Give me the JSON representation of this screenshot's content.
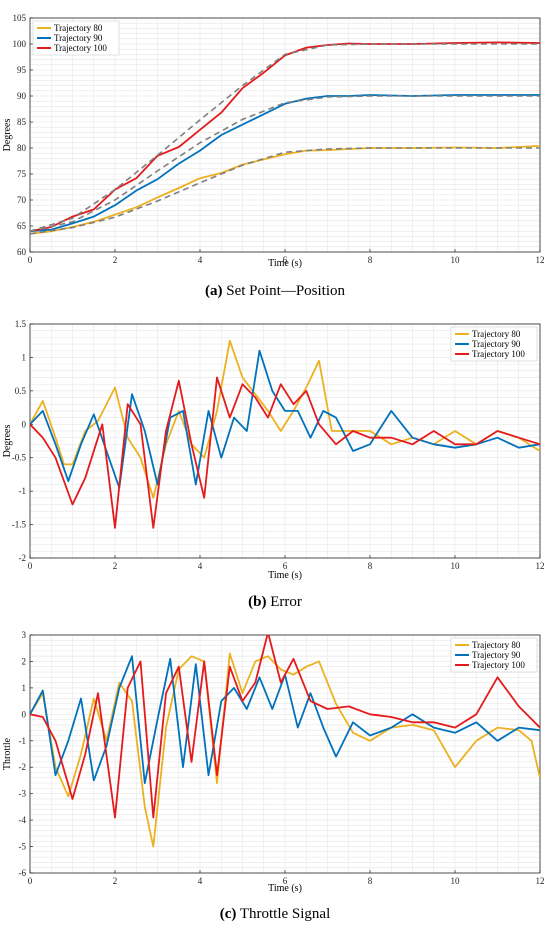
{
  "colors": {
    "traj80": "#EDB120",
    "traj90": "#0072BD",
    "traj100": "#E41A1C",
    "setpoint": "#7F7F7F",
    "grid": "#E6E6E6",
    "axis": "#222222"
  },
  "chart_data": [
    {
      "type": "line",
      "caption_letter": "(a)",
      "caption_text": " Set Point—Position",
      "xlabel": "Time (s)",
      "ylabel": "Degrees",
      "xlim": [
        0,
        12
      ],
      "ylim": [
        60,
        105
      ],
      "xticks": [
        0,
        2,
        4,
        6,
        8,
        10,
        12
      ],
      "yticks": [
        60,
        65,
        70,
        75,
        80,
        85,
        90,
        95,
        100,
        105
      ],
      "legend_position": "top-left",
      "grid": true,
      "series": [
        {
          "name": "Trajectory 80",
          "color_key": "traj80",
          "style": "solid",
          "x": [
            0,
            0.5,
            1,
            1.5,
            2,
            2.5,
            3,
            3.5,
            4,
            4.5,
            5,
            5.5,
            6,
            6.5,
            7,
            7.5,
            8,
            9,
            10,
            11,
            12
          ],
          "y": [
            63.5,
            64,
            64.8,
            65.8,
            67.2,
            68.6,
            70.5,
            72.3,
            74.2,
            75.2,
            76.8,
            77.8,
            78.8,
            79.5,
            79.6,
            79.8,
            80,
            80,
            80.1,
            80,
            80.4
          ]
        },
        {
          "name": "Trajectory 90",
          "color_key": "traj90",
          "style": "solid",
          "x": [
            0,
            0.5,
            1,
            1.5,
            2,
            2.5,
            3,
            3.5,
            4,
            4.5,
            5,
            5.5,
            6,
            6.5,
            7,
            7.5,
            8,
            9,
            10,
            11,
            12
          ],
          "y": [
            64,
            64.3,
            65.5,
            66.8,
            69,
            71.8,
            74,
            77,
            79.5,
            82.5,
            84.5,
            86.5,
            88.5,
            89.5,
            90,
            90,
            90.2,
            90,
            90.2,
            90.2,
            90.2
          ]
        },
        {
          "name": "Trajectory 100",
          "color_key": "traj100",
          "style": "solid",
          "x": [
            0,
            0.5,
            1,
            1.5,
            2,
            2.5,
            3,
            3.5,
            4,
            4.5,
            5,
            5.5,
            6,
            6.5,
            7,
            7.5,
            8,
            9,
            10,
            11,
            12
          ],
          "y": [
            64,
            64.8,
            66.8,
            68.2,
            72,
            74.2,
            78.5,
            80.2,
            83.5,
            86.8,
            91.5,
            94.5,
            97.8,
            99.3,
            99.8,
            100.1,
            100,
            100,
            100.2,
            100.3,
            100.2
          ]
        },
        {
          "name": "",
          "color_key": "setpoint",
          "style": "dashed",
          "x": [
            0,
            1,
            2,
            3,
            4,
            5,
            6,
            7,
            8,
            9,
            10,
            11,
            12
          ],
          "y": [
            63.5,
            64.7,
            66.7,
            69.8,
            73.3,
            76.7,
            79.2,
            79.8,
            80,
            80,
            80,
            80,
            80
          ]
        },
        {
          "name": "",
          "color_key": "setpoint",
          "style": "dashed",
          "x": [
            0,
            1,
            2,
            3,
            4,
            5,
            6,
            7,
            8,
            9,
            10,
            11,
            12
          ],
          "y": [
            64,
            65.8,
            70,
            75.6,
            81,
            85.5,
            88.7,
            89.8,
            90,
            90,
            90,
            90,
            90
          ]
        },
        {
          "name": "",
          "color_key": "setpoint",
          "style": "dashed",
          "x": [
            0,
            1,
            2,
            3,
            4,
            5,
            6,
            7,
            8,
            9,
            10,
            11,
            12
          ],
          "y": [
            64,
            66.5,
            72,
            78.6,
            85.4,
            92,
            98,
            99.8,
            100,
            100,
            100,
            100,
            100
          ]
        }
      ]
    },
    {
      "type": "line",
      "caption_letter": "(b)",
      "caption_text": " Error",
      "xlabel": "Time (s)",
      "ylabel": "Degrees",
      "xlim": [
        0,
        12
      ],
      "ylim": [
        -2,
        1.5
      ],
      "xticks": [
        0,
        2,
        4,
        6,
        8,
        10,
        12
      ],
      "yticks": [
        -2,
        -1.5,
        -1,
        -0.5,
        0,
        0.5,
        1,
        1.5
      ],
      "legend_position": "top-right",
      "grid": true,
      "series": [
        {
          "name": "Trajectory 80",
          "color_key": "traj80",
          "style": "solid",
          "x": [
            0,
            0.3,
            0.6,
            0.8,
            1.0,
            1.3,
            1.6,
            2.0,
            2.3,
            2.6,
            2.9,
            3.2,
            3.5,
            3.8,
            4.1,
            4.4,
            4.7,
            5.0,
            5.3,
            5.6,
            5.9,
            6.2,
            6.5,
            6.8,
            7.1,
            7.4,
            7.7,
            8.0,
            8.5,
            9.0,
            9.5,
            10.0,
            10.5,
            11.0,
            11.5,
            12.0
          ],
          "y": [
            0,
            0.35,
            -0.2,
            -0.6,
            -0.6,
            -0.1,
            0.05,
            0.55,
            -0.2,
            -0.5,
            -1.1,
            -0.3,
            0.2,
            -0.3,
            -0.5,
            0.2,
            1.25,
            0.7,
            0.45,
            0.2,
            -0.1,
            0.2,
            0.55,
            0.95,
            -0.1,
            -0.1,
            -0.1,
            -0.1,
            -0.3,
            -0.2,
            -0.3,
            -0.1,
            -0.3,
            -0.1,
            -0.2,
            -0.4
          ]
        },
        {
          "name": "Trajectory 90",
          "color_key": "traj90",
          "style": "solid",
          "x": [
            0,
            0.3,
            0.6,
            0.9,
            1.2,
            1.5,
            1.8,
            2.1,
            2.4,
            2.7,
            3.0,
            3.3,
            3.6,
            3.9,
            4.2,
            4.5,
            4.8,
            5.1,
            5.4,
            5.7,
            6.0,
            6.3,
            6.6,
            6.9,
            7.2,
            7.6,
            8.0,
            8.5,
            9.0,
            9.5,
            10.0,
            10.5,
            11.0,
            11.5,
            12.0
          ],
          "y": [
            0,
            0.2,
            -0.3,
            -0.85,
            -0.3,
            0.15,
            -0.4,
            -0.95,
            0.45,
            -0.1,
            -0.9,
            0.1,
            0.2,
            -0.9,
            0.2,
            -0.5,
            0.1,
            -0.1,
            1.1,
            0.5,
            0.2,
            0.2,
            -0.2,
            0.2,
            0.1,
            -0.4,
            -0.3,
            0.2,
            -0.2,
            -0.3,
            -0.35,
            -0.3,
            -0.2,
            -0.35,
            -0.3
          ]
        },
        {
          "name": "Trajectory 100",
          "color_key": "traj100",
          "style": "solid",
          "x": [
            0,
            0.3,
            0.6,
            1.0,
            1.3,
            1.7,
            2.0,
            2.3,
            2.6,
            2.9,
            3.2,
            3.5,
            3.8,
            4.1,
            4.4,
            4.7,
            5.0,
            5.3,
            5.6,
            5.9,
            6.2,
            6.5,
            6.8,
            7.2,
            7.6,
            8.0,
            8.5,
            9.0,
            9.5,
            10.0,
            10.5,
            11.0,
            11.5,
            12.0
          ],
          "y": [
            0,
            -0.2,
            -0.5,
            -1.2,
            -0.8,
            0.0,
            -1.55,
            0.3,
            0.0,
            -1.55,
            -0.1,
            0.65,
            -0.3,
            -1.1,
            0.7,
            0.1,
            0.6,
            0.4,
            0.1,
            0.6,
            0.3,
            0.5,
            0.0,
            -0.3,
            -0.1,
            -0.2,
            -0.2,
            -0.3,
            -0.1,
            -0.3,
            -0.3,
            -0.1,
            -0.2,
            -0.3
          ]
        }
      ]
    },
    {
      "type": "line",
      "caption_letter": "(c)",
      "caption_text": " Throttle Signal",
      "xlabel": "Time (s)",
      "ylabel": "Throttle",
      "xlim": [
        0,
        12
      ],
      "ylim": [
        -6,
        3
      ],
      "xticks": [
        0,
        2,
        4,
        6,
        8,
        10,
        12
      ],
      "yticks": [
        -6,
        -5,
        -4,
        -3,
        -2,
        -1,
        0,
        1,
        2,
        3
      ],
      "legend_position": "top-right",
      "grid": true,
      "series": [
        {
          "name": "Trajectory 80",
          "color_key": "traj80",
          "style": "solid",
          "x": [
            0,
            0.3,
            0.6,
            0.9,
            1.2,
            1.5,
            1.8,
            2.1,
            2.4,
            2.7,
            2.9,
            3.2,
            3.5,
            3.8,
            4.1,
            4.4,
            4.7,
            5.0,
            5.3,
            5.6,
            5.9,
            6.2,
            6.5,
            6.8,
            7.2,
            7.6,
            8.0,
            8.5,
            9.0,
            9.5,
            10.0,
            10.5,
            11.0,
            11.5,
            11.8,
            12.0
          ],
          "y": [
            0,
            0.8,
            -2.0,
            -3.1,
            -1.5,
            0.6,
            -1.0,
            1.2,
            0.5,
            -3.5,
            -5.0,
            -0.5,
            1.7,
            2.2,
            2.0,
            -2.6,
            2.3,
            0.8,
            2.0,
            2.2,
            1.7,
            1.5,
            1.8,
            2.0,
            0.4,
            -0.7,
            -1.0,
            -0.5,
            -0.4,
            -0.6,
            -2.0,
            -1.0,
            -0.5,
            -0.6,
            -1.0,
            -2.4
          ]
        },
        {
          "name": "Trajectory 90",
          "color_key": "traj90",
          "style": "solid",
          "x": [
            0,
            0.3,
            0.6,
            0.9,
            1.2,
            1.5,
            1.8,
            2.1,
            2.4,
            2.7,
            3.0,
            3.3,
            3.6,
            3.9,
            4.2,
            4.5,
            4.8,
            5.1,
            5.4,
            5.7,
            6.0,
            6.3,
            6.6,
            6.9,
            7.2,
            7.6,
            8.0,
            8.5,
            9.0,
            9.5,
            10.0,
            10.5,
            11.0,
            11.5,
            12.0
          ],
          "y": [
            0,
            0.9,
            -2.3,
            -1.0,
            0.6,
            -2.5,
            -1.2,
            1.0,
            2.2,
            -2.6,
            -0.2,
            2.1,
            -2.0,
            1.9,
            -2.3,
            0.5,
            1.0,
            0.2,
            1.4,
            0.2,
            1.5,
            -0.5,
            0.8,
            -0.5,
            -1.6,
            -0.3,
            -0.8,
            -0.5,
            0.0,
            -0.5,
            -0.7,
            -0.3,
            -1.0,
            -0.5,
            -0.6
          ]
        },
        {
          "name": "Trajectory 100",
          "color_key": "traj100",
          "style": "solid",
          "x": [
            0,
            0.3,
            0.6,
            1.0,
            1.3,
            1.6,
            2.0,
            2.3,
            2.6,
            2.9,
            3.2,
            3.5,
            3.8,
            4.1,
            4.4,
            4.7,
            5.0,
            5.3,
            5.6,
            5.9,
            6.2,
            6.6,
            7.0,
            7.5,
            8.0,
            8.5,
            9.0,
            9.5,
            10.0,
            10.5,
            11.0,
            11.5,
            12.0
          ],
          "y": [
            0,
            -0.1,
            -1.0,
            -3.2,
            -1.5,
            0.8,
            -3.9,
            1.0,
            2.0,
            -3.9,
            0.8,
            1.8,
            -1.8,
            2.0,
            -2.3,
            1.8,
            0.5,
            1.2,
            3.1,
            1.2,
            2.1,
            0.5,
            0.2,
            0.3,
            0.0,
            -0.1,
            -0.3,
            -0.3,
            -0.5,
            0.0,
            1.4,
            0.3,
            -0.5
          ]
        }
      ]
    }
  ]
}
